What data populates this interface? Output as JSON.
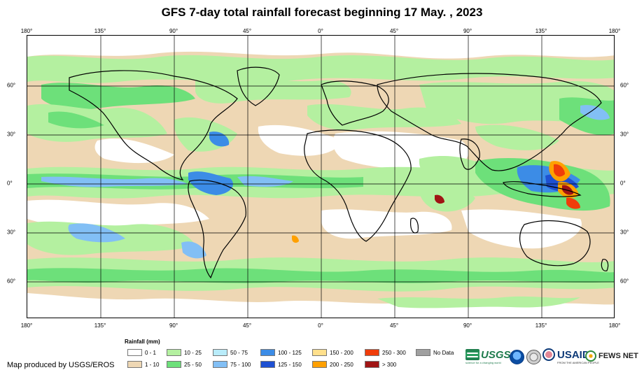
{
  "title": "GFS 7-day total rainfall forecast beginning 17 May. , 2023",
  "longitude_ticks": [
    "180°",
    "135°",
    "90°",
    "45°",
    "0°",
    "45°",
    "90°",
    "135°",
    "180°"
  ],
  "latitude_ticks": [
    "60°",
    "30°",
    "0°",
    "30°",
    "60°"
  ],
  "legend": {
    "title": "Rainfall (mm)",
    "items": [
      {
        "label": "0 - 1",
        "color": "#ffffff"
      },
      {
        "label": "1 - 10",
        "color": "#eed7b4"
      },
      {
        "label": "10 - 25",
        "color": "#b4f0a0"
      },
      {
        "label": "25 - 50",
        "color": "#6de07a"
      },
      {
        "label": "50 - 75",
        "color": "#b9ecfa"
      },
      {
        "label": "75 - 100",
        "color": "#82bff5"
      },
      {
        "label": "100 - 125",
        "color": "#3c8ce6"
      },
      {
        "label": "125 - 150",
        "color": "#1e50d2"
      },
      {
        "label": "150 - 200",
        "color": "#ffe08c"
      },
      {
        "label": "200 - 250",
        "color": "#ffa000"
      },
      {
        "label": "250 - 300",
        "color": "#f03c0a"
      },
      {
        "label": "> 300",
        "color": "#a01414"
      },
      {
        "label": "No Data",
        "color": "#a0a0a0"
      }
    ]
  },
  "credit": "Map produced by USGS/EROS",
  "logos": {
    "usgs": "USGS",
    "usgs_tagline": "science for a changing world",
    "usaid": "USAID",
    "usaid_tagline": "FROM THE AMERICAN PEOPLE",
    "fews": "FEWS NET"
  },
  "icons": [
    "usgs-logo",
    "noaa-seal-icon",
    "commerce-seal-icon",
    "usaid-logo",
    "fews-net-logo"
  ]
}
